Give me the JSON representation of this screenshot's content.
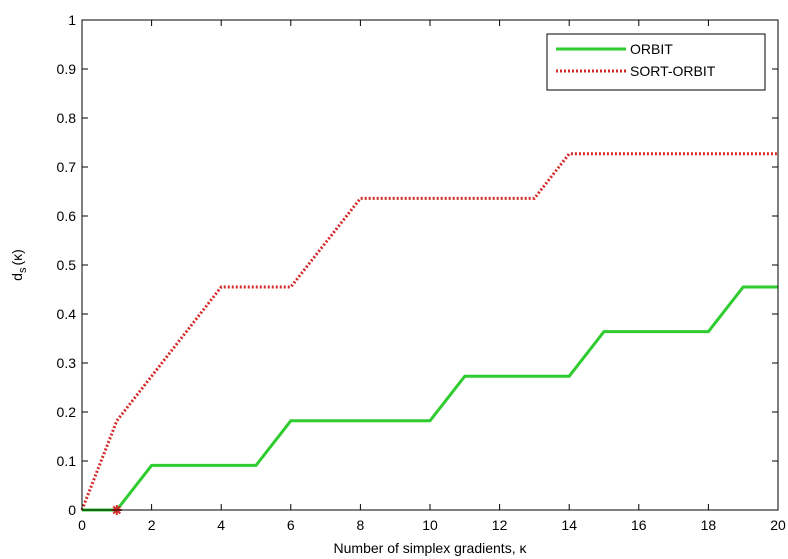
{
  "chart_data": {
    "type": "line",
    "title": "",
    "xlabel": "Number of simplex gradients, κ",
    "ylabel_main": "d",
    "ylabel_sub": "s",
    "ylabel_arg": "(κ)",
    "xlim": [
      0,
      20
    ],
    "ylim": [
      0,
      1
    ],
    "x_ticks": [
      "0",
      "2",
      "4",
      "6",
      "8",
      "10",
      "12",
      "14",
      "16",
      "18",
      "20"
    ],
    "y_ticks": [
      "0",
      "0.1",
      "0.2",
      "0.3",
      "0.4",
      "0.5",
      "0.6",
      "0.7",
      "0.8",
      "0.9",
      "1"
    ],
    "grid": false,
    "legend_position": "top-right",
    "series": [
      {
        "name": "ORBIT",
        "color": "#2ecc2e",
        "style": "solid",
        "x": [
          0,
          1,
          2,
          5,
          6,
          10,
          11,
          14,
          15,
          18,
          19,
          20
        ],
        "y": [
          0,
          0,
          0.091,
          0.091,
          0.182,
          0.182,
          0.273,
          0.273,
          0.364,
          0.364,
          0.455,
          0.455
        ]
      },
      {
        "name": "SORT-ORBIT",
        "color": "#d42a2a",
        "style": "dotted",
        "x": [
          0,
          1,
          2,
          4,
          6,
          8,
          13,
          14,
          20
        ],
        "y": [
          0,
          0.182,
          0.273,
          0.455,
          0.455,
          0.636,
          0.636,
          0.727,
          0.727
        ]
      }
    ],
    "markers": [
      {
        "x": 1,
        "y": 0,
        "color": "#d42a2a",
        "shape": "asterisk"
      }
    ]
  }
}
